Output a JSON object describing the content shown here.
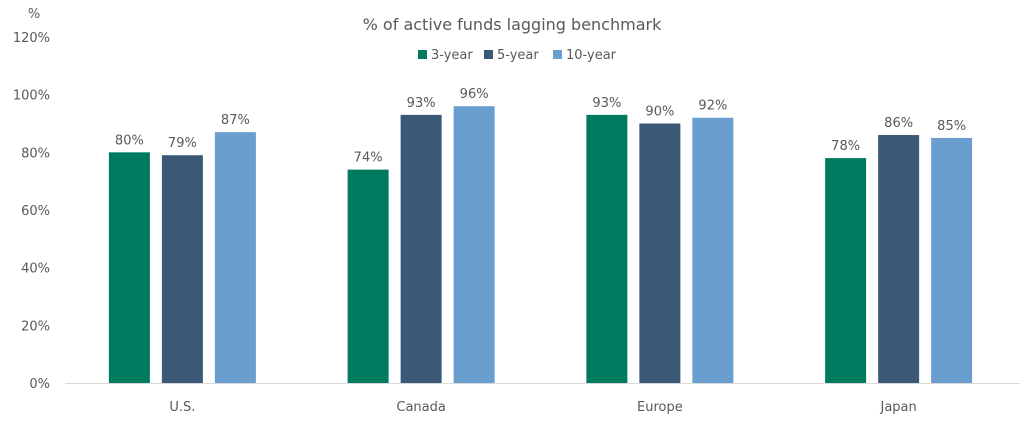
{
  "chart_data": {
    "type": "bar",
    "title": "% of active funds lagging benchmark",
    "ylabel": "%",
    "xlabel": "",
    "ylim": [
      0,
      120
    ],
    "yticks": [
      0,
      20,
      40,
      60,
      80,
      100,
      120
    ],
    "ytick_labels": [
      "0%",
      "20%",
      "40%",
      "60%",
      "80%",
      "100%",
      "120%"
    ],
    "grid": false,
    "legend_position": "top-center",
    "categories": [
      "U.S.",
      "Canada",
      "Europe",
      "Japan"
    ],
    "series": [
      {
        "name": "3-year",
        "color": "#007A5E",
        "values": [
          80,
          74,
          93,
          78
        ],
        "labels": [
          "80%",
          "74%",
          "93%",
          "78%"
        ]
      },
      {
        "name": "5-year",
        "color": "#3B5877",
        "values": [
          79,
          93,
          90,
          86
        ],
        "labels": [
          "79%",
          "93%",
          "90%",
          "86%"
        ]
      },
      {
        "name": "10-year",
        "color": "#699ECF",
        "values": [
          87,
          96,
          92,
          85
        ],
        "labels": [
          "87%",
          "96%",
          "92%",
          "85%"
        ]
      }
    ]
  }
}
